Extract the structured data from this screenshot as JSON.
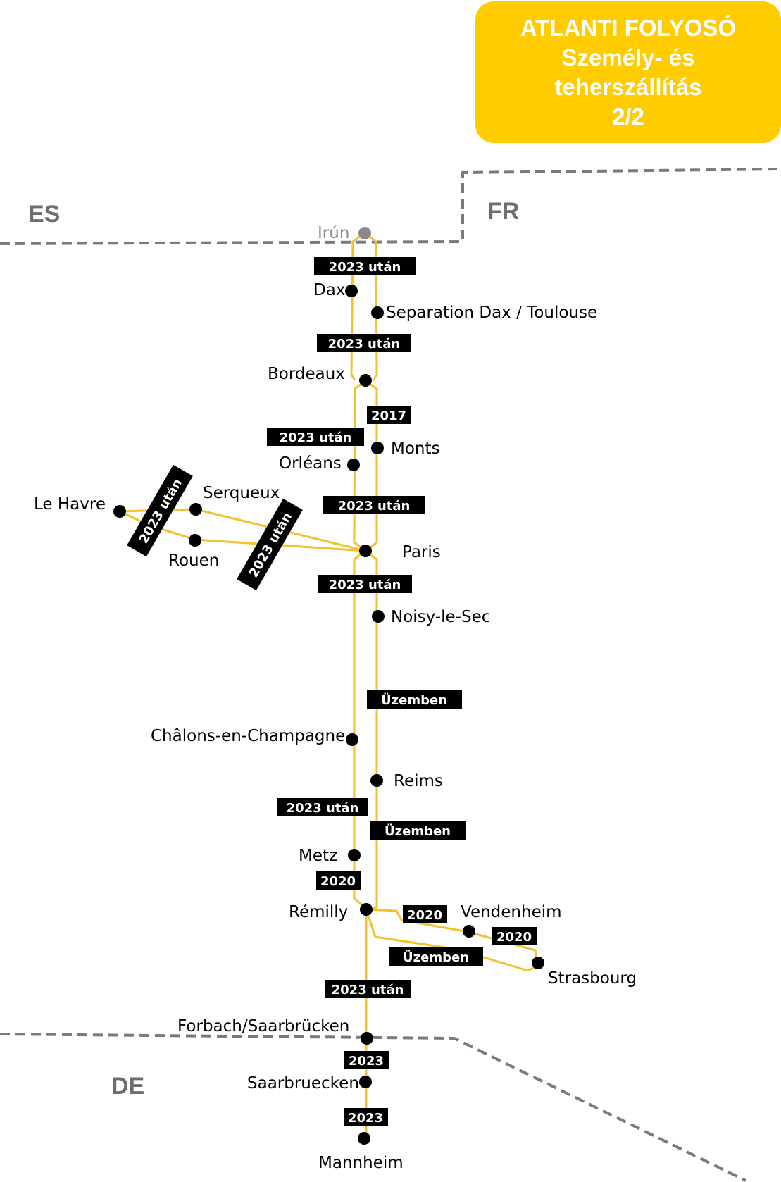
{
  "title": {
    "line1": "ATLANTI FOLYOSÓ",
    "line2": "Személy- és",
    "line3": "teherszállítás",
    "line4": "2/2"
  },
  "countries": {
    "es": "ES",
    "fr": "FR",
    "de": "DE"
  },
  "stations": {
    "irun": "Irún",
    "dax": "Dax",
    "separation": "Separation Dax / Toulouse",
    "bordeaux": "Bordeaux",
    "monts": "Monts",
    "orleans": "Orléans",
    "le_havre": "Le Havre",
    "serqueux": "Serqueux",
    "rouen": "Rouen",
    "paris": "Paris",
    "noisy": "Noisy-le-Sec",
    "chalons": "Châlons-en-Champagne",
    "reims": "Reims",
    "metz": "Metz",
    "remilly": "Rémilly",
    "vendenheim": "Vendenheim",
    "strasbourg": "Strasbourg",
    "forbach": "Forbach/Saarbrücken",
    "saarbruecken": "Saarbruecken",
    "mannheim": "Mannheim"
  },
  "tags": {
    "t1": "2023 után",
    "t2": "2023 után",
    "t3": "2017",
    "t4": "2023 után",
    "t5": "2023 után",
    "t6": "2023 után",
    "t7": "2023 után",
    "t8": "2023 után",
    "t9": "Üzemben",
    "t10": "2023 után",
    "t11": "Üzemben",
    "t12": "2020",
    "t13": "2020",
    "t14": "2020",
    "t15": "Üzemben",
    "t16": "2023 után",
    "t17": "2023",
    "t18": "2023"
  },
  "colors": {
    "line": "#f4c12e",
    "title_bg": "#ffcc00",
    "border": "#7a7a7a",
    "tag_bg": "#000000"
  }
}
